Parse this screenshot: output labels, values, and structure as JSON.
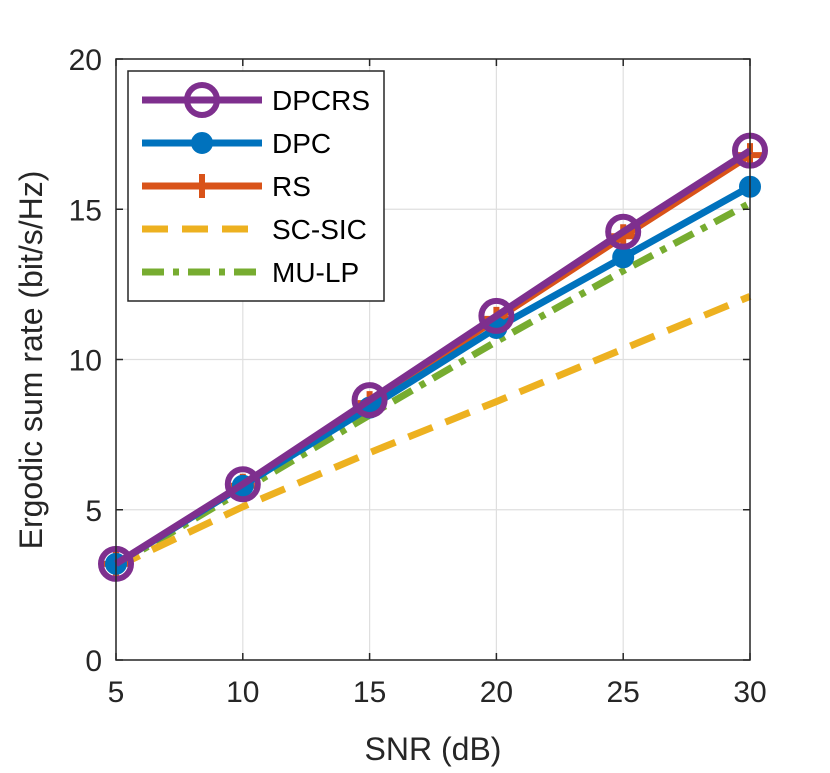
{
  "chart_data": {
    "type": "line",
    "title": "",
    "xlabel": "SNR (dB)",
    "ylabel": "Ergodic sum rate (bit/s/Hz)",
    "xlim": [
      5,
      30
    ],
    "ylim": [
      0,
      20
    ],
    "xticks": [
      5,
      10,
      15,
      20,
      25,
      30
    ],
    "yticks": [
      0,
      5,
      10,
      15,
      20
    ],
    "grid": true,
    "legend_position": "top-left",
    "x": [
      5,
      10,
      15,
      20,
      25,
      30
    ],
    "series": [
      {
        "name": "DPCRS",
        "color": "#7e2f8e",
        "style": "solid",
        "marker": "circle",
        "values": [
          3.2,
          5.85,
          8.65,
          11.45,
          14.25,
          16.95
        ]
      },
      {
        "name": "DPC",
        "color": "#0072bd",
        "style": "solid",
        "marker": "dot",
        "values": [
          3.2,
          5.8,
          8.4,
          11.05,
          13.4,
          15.75
        ]
      },
      {
        "name": "RS",
        "color": "#d95319",
        "style": "solid",
        "marker": "plus",
        "values": [
          3.2,
          5.8,
          8.55,
          11.35,
          14.1,
          16.8
        ]
      },
      {
        "name": "SC-SIC",
        "color": "#edb120",
        "style": "dashed",
        "marker": "none",
        "values": [
          3.1,
          5.1,
          6.9,
          8.6,
          10.35,
          12.1
        ]
      },
      {
        "name": "MU-LP",
        "color": "#77ac30",
        "style": "dashdot",
        "marker": "none",
        "values": [
          3.15,
          5.65,
          8.15,
          10.6,
          12.95,
          15.2
        ]
      }
    ]
  }
}
